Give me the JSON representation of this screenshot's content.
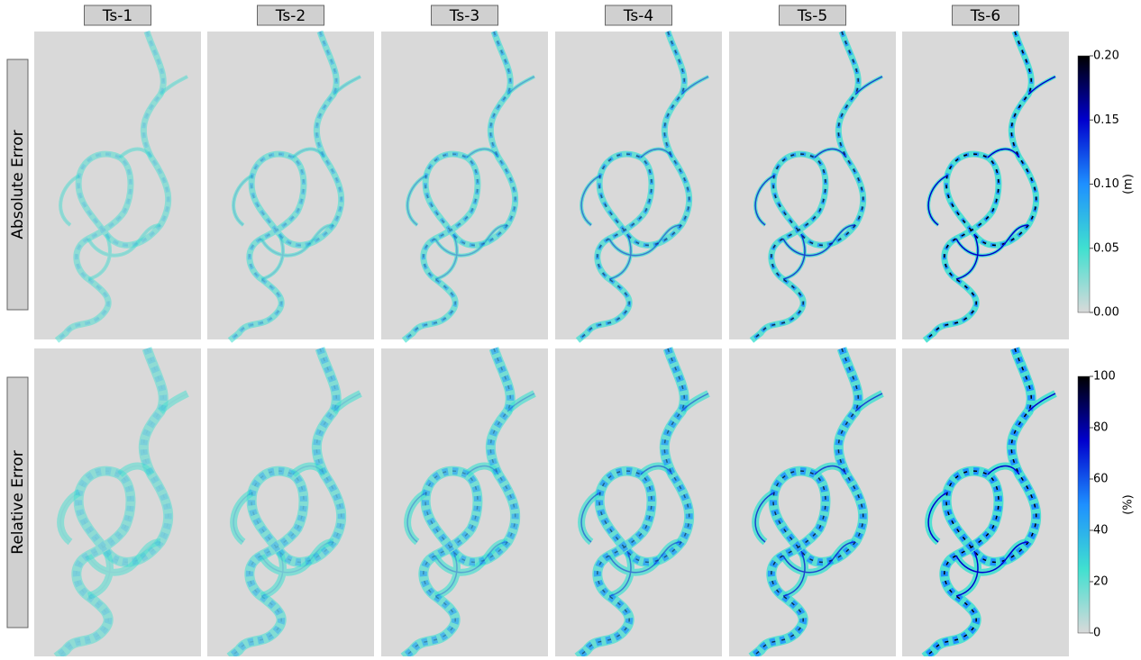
{
  "columns": [
    "Ts-1",
    "Ts-2",
    "Ts-3",
    "Ts-4",
    "Ts-5",
    "Ts-6"
  ],
  "colormap": [
    "#d9d9d9",
    "#40e0d0",
    "#1e90ff",
    "#0000cd",
    "#000000"
  ],
  "rows": [
    {
      "label": "Absolute Error",
      "colorbar": {
        "unit": "(m)",
        "lim": [
          0,
          0.2
        ],
        "ticks": [
          {
            "value": 0,
            "label": "0.00"
          },
          {
            "value": 0.05,
            "label": "0.05"
          },
          {
            "value": 0.1,
            "label": "0.10"
          },
          {
            "value": 0.15,
            "label": "0.15"
          },
          {
            "value": 0.2,
            "label": "0.20"
          }
        ]
      }
    },
    {
      "label": "Relative Error",
      "colorbar": {
        "unit": "(%)",
        "lim": [
          0,
          100
        ],
        "ticks": [
          0,
          20,
          40,
          60,
          80,
          100
        ]
      }
    }
  ]
}
